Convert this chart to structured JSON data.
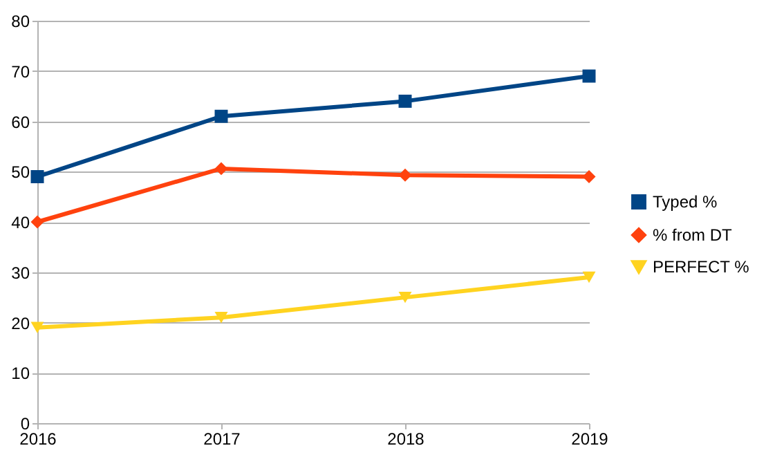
{
  "chart_data": {
    "type": "line",
    "x": [
      2016,
      2017,
      2018,
      2019
    ],
    "xlim": [
      2016,
      2019
    ],
    "xticks": [
      2016,
      2017,
      2018,
      2019
    ],
    "ylim": [
      0,
      80
    ],
    "yticks": [
      0,
      10,
      20,
      30,
      40,
      50,
      60,
      70,
      80
    ],
    "grid": "y",
    "legend": "right",
    "series": [
      {
        "name": "Typed %",
        "color": "#004586",
        "marker": "square",
        "values": [
          49,
          61,
          64,
          69
        ]
      },
      {
        "name": "% from DT",
        "color": "#ff420e",
        "marker": "diamond",
        "values": [
          40,
          50.6,
          49.3,
          49
        ]
      },
      {
        "name": "PERFECT %",
        "color": "#ffd320",
        "marker": "triangle",
        "values": [
          19,
          21,
          25,
          29
        ]
      }
    ]
  }
}
